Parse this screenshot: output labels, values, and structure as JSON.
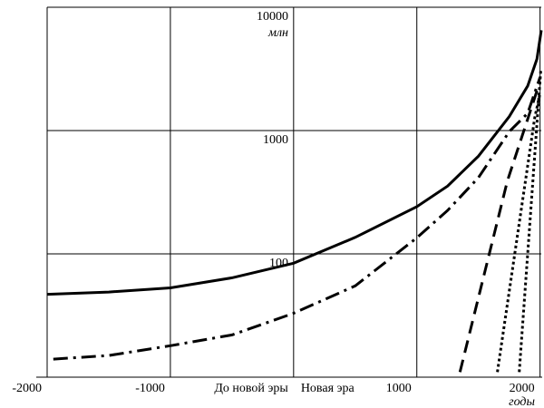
{
  "chart_data": {
    "type": "line",
    "y_label": "млн",
    "x_label": "годы",
    "annotations": [
      {
        "text": "Новая эра",
        "x": 0
      }
    ],
    "xlim": [
      -2000,
      2010
    ],
    "xticks": [
      -2000,
      -1000,
      {
        "value": 0,
        "label": "До новой эры"
      },
      1000,
      2000
    ],
    "ylim": [
      10,
      10000
    ],
    "log_y": true,
    "yticks": [
      100,
      1000,
      10000
    ],
    "grid": true,
    "series": [
      {
        "color": "#000000",
        "style": "solid",
        "x": [
          -2000,
          -1500,
          -1000,
          -500,
          0,
          500,
          1000,
          1250,
          1500,
          1750,
          1900,
          1975,
          2010
        ],
        "values": [
          47,
          49,
          53,
          64,
          84,
          136,
          241,
          355,
          620,
          1300,
          2300,
          3800,
          6500
        ]
      },
      {
        "color": "#000000",
        "style": "dashdot",
        "x": [
          -1950,
          -1500,
          -1000,
          -500,
          0,
          500,
          1000,
          1250,
          1500,
          1750,
          1900,
          2000
        ],
        "values": [
          14,
          15,
          18,
          22,
          33,
          55,
          135,
          225,
          415,
          980,
          1380,
          2700
        ]
      },
      {
        "color": "#000000",
        "style": "dashed",
        "x": [
          1350,
          1735,
          2000
        ],
        "values": [
          11,
          390,
          2500
        ]
      },
      {
        "color": "#000000",
        "style": "dotted",
        "x": [
          1654,
          1956,
          2000
        ],
        "values": [
          11,
          1260,
          2000
        ]
      },
      {
        "color": "#000000",
        "style": "dotted",
        "x": [
          1831,
          2007
        ],
        "values": [
          11,
          3200
        ]
      }
    ]
  }
}
